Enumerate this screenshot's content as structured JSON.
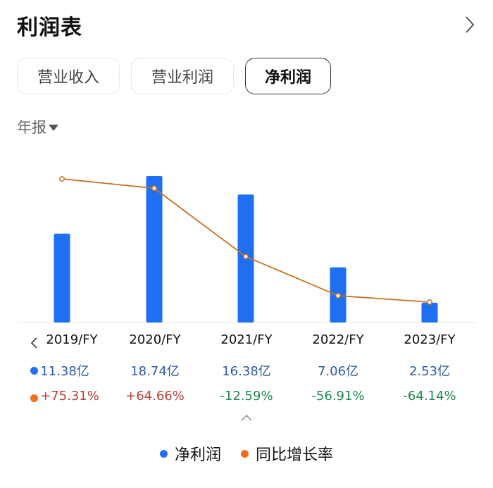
{
  "header": {
    "title": "利润表"
  },
  "tabs": [
    {
      "label": "营业收入",
      "active": false
    },
    {
      "label": "营业利润",
      "active": false
    },
    {
      "label": "净利润",
      "active": true
    }
  ],
  "period_selector": {
    "label": "年报"
  },
  "colors": {
    "bar": "#1f6ff2",
    "line": "#c8711c",
    "positive": "#b8423b",
    "negative": "#1f8a4c",
    "value": "#2f5aa8"
  },
  "table": {
    "periods": [
      "2019/FY",
      "2020/FY",
      "2021/FY",
      "2022/FY",
      "2023/FY"
    ],
    "net_profit": [
      "11.38亿",
      "18.74亿",
      "16.38亿",
      "7.06亿",
      "2.53亿"
    ],
    "yoy_growth": [
      "+75.31%",
      "+64.66%",
      "-12.59%",
      "-56.91%",
      "-64.14%"
    ]
  },
  "legend": [
    {
      "label": "净利润",
      "color": "#1f6ff2"
    },
    {
      "label": "同比增长率",
      "color": "#f06e1a"
    }
  ],
  "chart_data": {
    "type": "bar",
    "title": "利润表 - 净利润",
    "categories": [
      "2019/FY",
      "2020/FY",
      "2021/FY",
      "2022/FY",
      "2023/FY"
    ],
    "series": [
      {
        "name": "净利润",
        "type": "bar",
        "unit": "亿",
        "values": [
          11.38,
          18.74,
          16.38,
          7.06,
          2.53
        ]
      },
      {
        "name": "同比增长率",
        "type": "line",
        "unit": "%",
        "values": [
          75.31,
          64.66,
          -12.59,
          -56.91,
          -64.14
        ]
      }
    ],
    "xlabel": "",
    "ylabel": "",
    "grid": false,
    "legend_position": "bottom"
  }
}
